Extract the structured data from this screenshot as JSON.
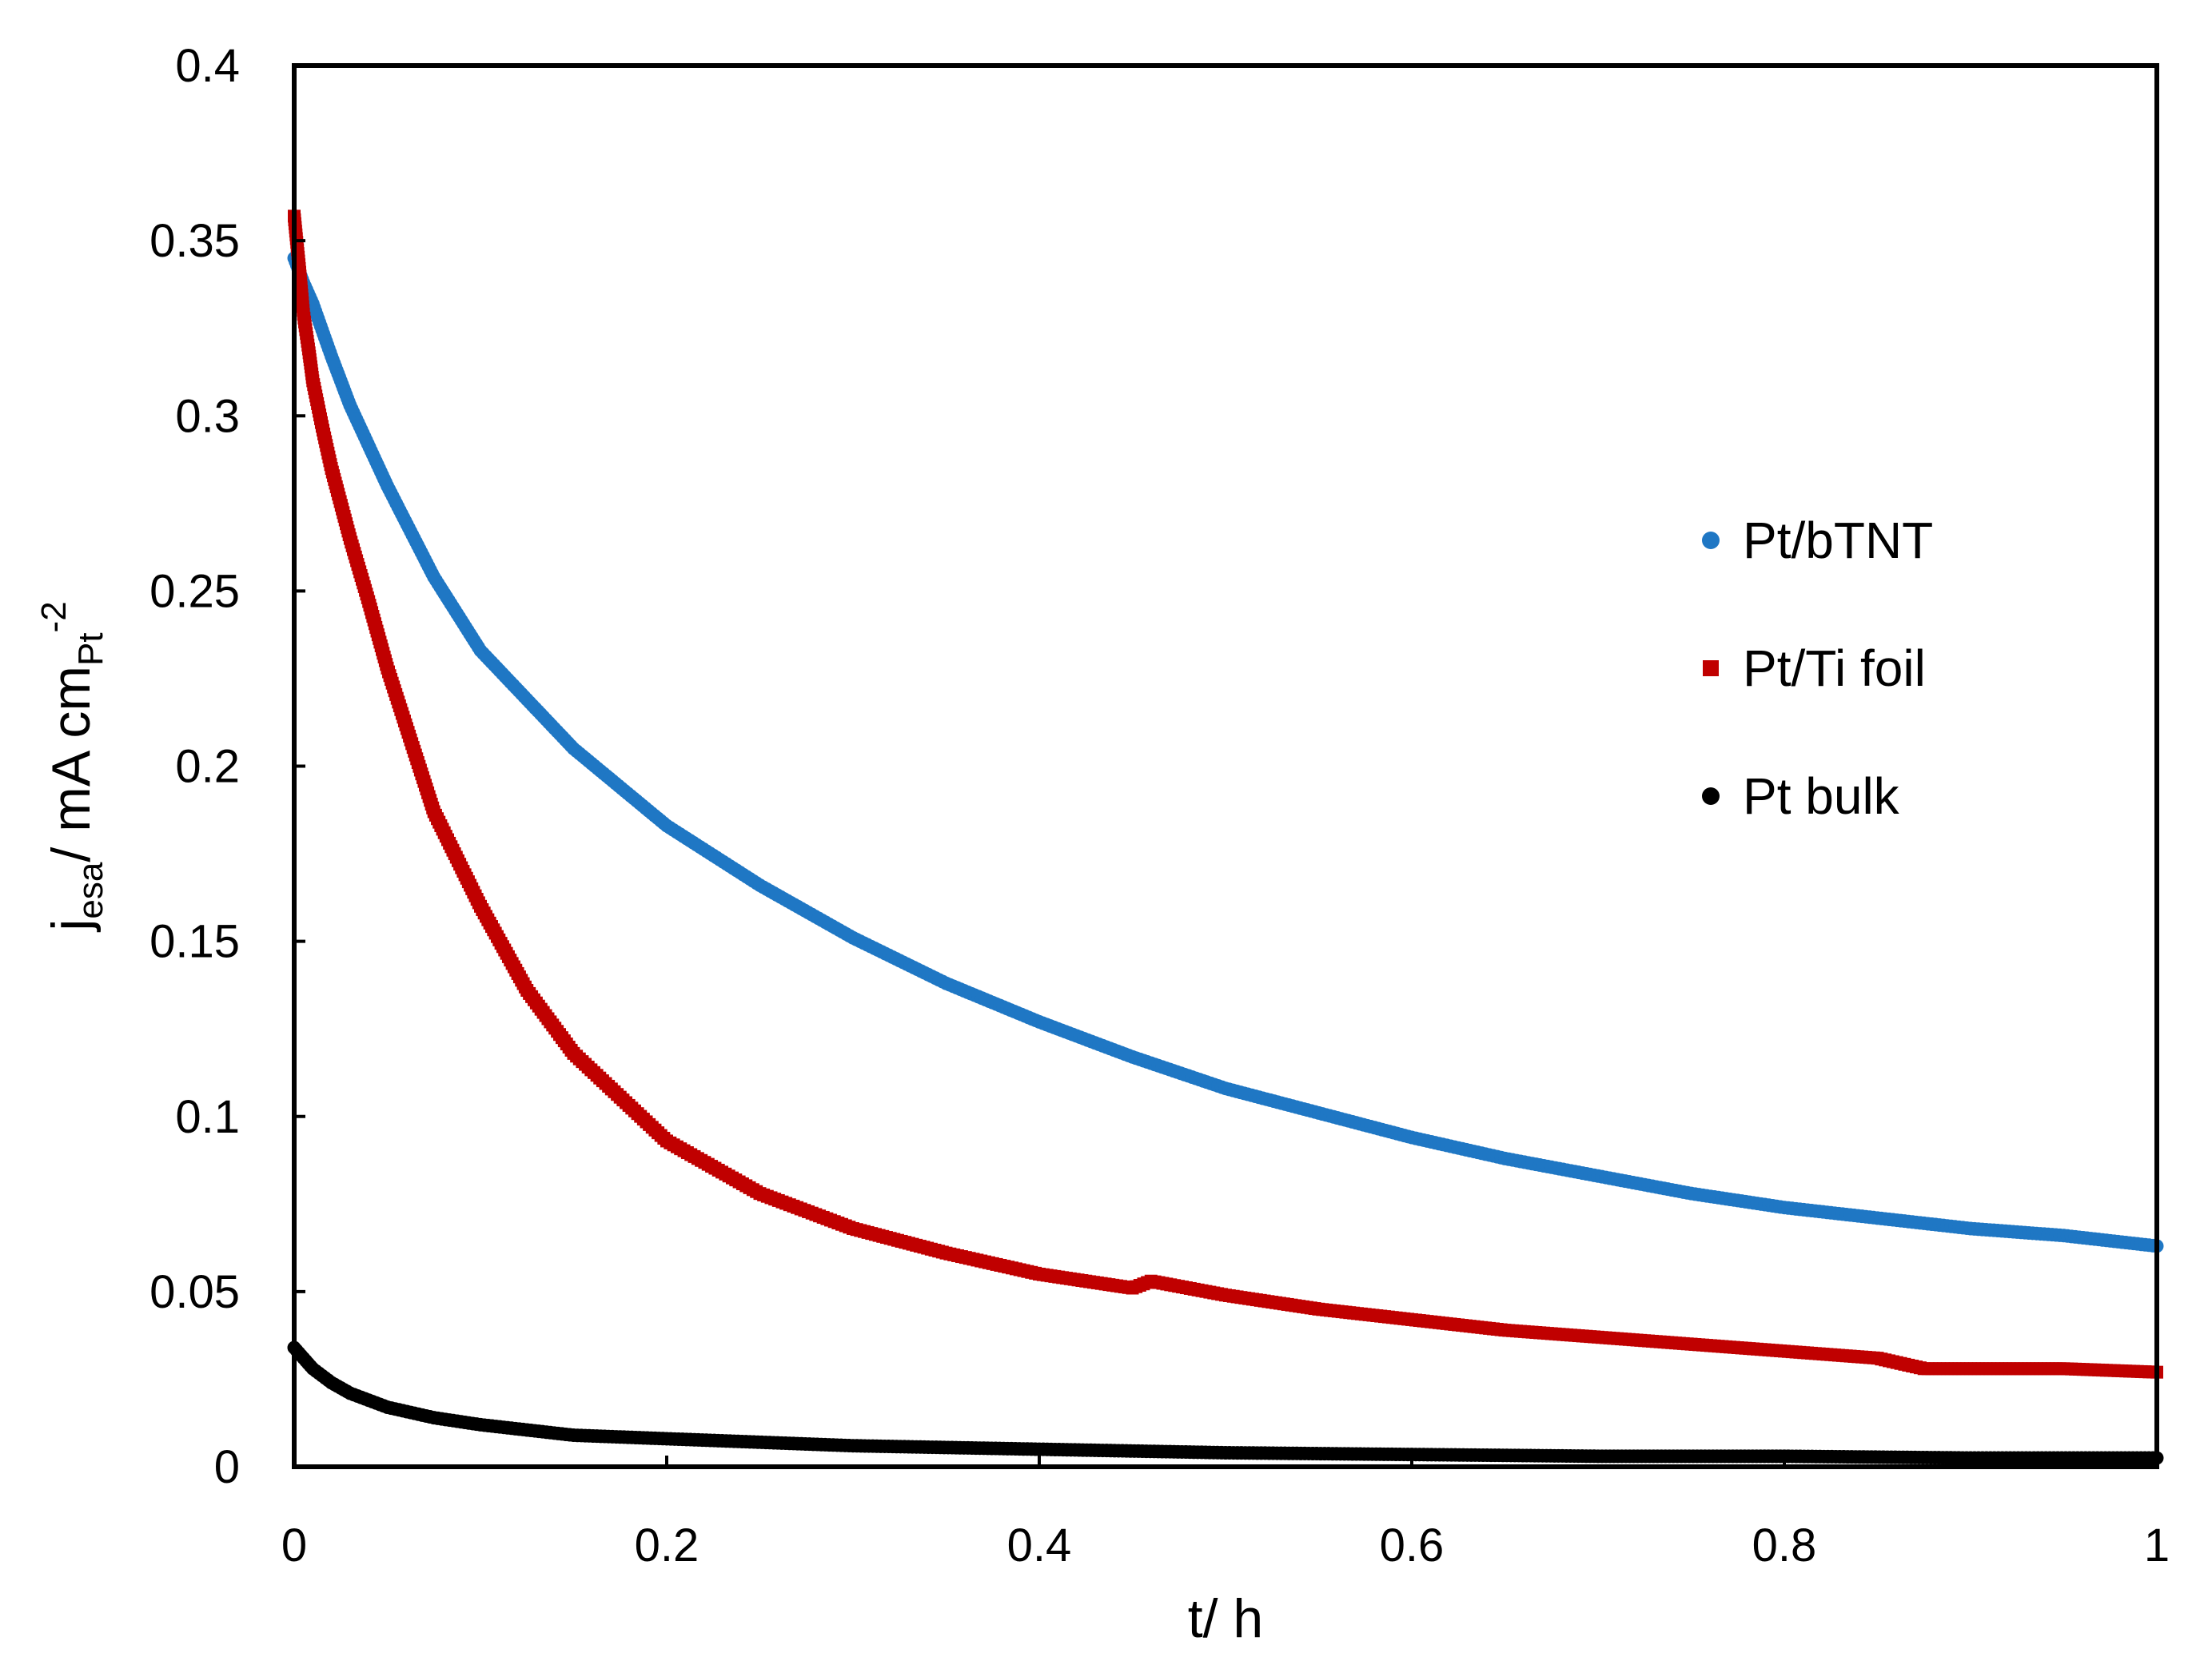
{
  "chart_data": {
    "type": "scatter",
    "title": "",
    "xlabel": "t/ h",
    "ylabel": {
      "main": "j",
      "sub": "esa",
      "rest": "/ mA cm",
      "sub2": "Pt",
      "sup": "-2"
    },
    "xlim": [
      0,
      1
    ],
    "ylim": [
      0,
      0.4
    ],
    "x_ticks": [
      "0",
      "0.2",
      "0.4",
      "0.6",
      "0.8",
      "1"
    ],
    "y_ticks": [
      "0",
      "0.05",
      "0.1",
      "0.15",
      "0.2",
      "0.25",
      "0.3",
      "0.35",
      "0.4"
    ],
    "grid": false,
    "legend_position": "right-center",
    "series": [
      {
        "name": "Pt/bTNT",
        "color": "#1f77c4",
        "marker": "circle",
        "x": [
          0,
          0.005,
          0.01,
          0.02,
          0.03,
          0.05,
          0.075,
          0.1,
          0.15,
          0.2,
          0.25,
          0.3,
          0.35,
          0.4,
          0.45,
          0.5,
          0.55,
          0.6,
          0.65,
          0.7,
          0.75,
          0.8,
          0.85,
          0.9,
          0.95,
          1.0
        ],
        "y": [
          0.345,
          0.338,
          0.332,
          0.317,
          0.303,
          0.28,
          0.254,
          0.233,
          0.205,
          0.183,
          0.166,
          0.151,
          0.138,
          0.127,
          0.117,
          0.108,
          0.101,
          0.094,
          0.088,
          0.083,
          0.078,
          0.074,
          0.071,
          0.068,
          0.066,
          0.063
        ]
      },
      {
        "name": "Pt/Ti foil",
        "color": "#c00000",
        "marker": "square",
        "x": [
          0,
          0.003,
          0.005,
          0.008,
          0.01,
          0.015,
          0.02,
          0.03,
          0.04,
          0.05,
          0.075,
          0.1,
          0.125,
          0.15,
          0.2,
          0.25,
          0.3,
          0.35,
          0.4,
          0.45,
          0.46,
          0.5,
          0.55,
          0.6,
          0.65,
          0.7,
          0.75,
          0.8,
          0.85,
          0.875,
          0.9,
          0.95,
          1.0
        ],
        "y": [
          0.357,
          0.341,
          0.329,
          0.318,
          0.31,
          0.297,
          0.285,
          0.265,
          0.247,
          0.228,
          0.187,
          0.16,
          0.136,
          0.118,
          0.093,
          0.078,
          0.068,
          0.061,
          0.055,
          0.051,
          0.053,
          0.049,
          0.045,
          0.042,
          0.039,
          0.037,
          0.035,
          0.033,
          0.031,
          0.028,
          0.028,
          0.028,
          0.027
        ]
      },
      {
        "name": "Pt bulk",
        "color": "#000000",
        "marker": "circle",
        "x": [
          0,
          0.005,
          0.01,
          0.02,
          0.03,
          0.05,
          0.075,
          0.1,
          0.15,
          0.2,
          0.3,
          0.4,
          0.5,
          0.6,
          0.7,
          0.8,
          0.9,
          1.0
        ],
        "y": [
          0.034,
          0.031,
          0.028,
          0.024,
          0.021,
          0.017,
          0.014,
          0.012,
          0.009,
          0.008,
          0.006,
          0.005,
          0.004,
          0.0035,
          0.003,
          0.003,
          0.0025,
          0.0025
        ]
      }
    ]
  }
}
